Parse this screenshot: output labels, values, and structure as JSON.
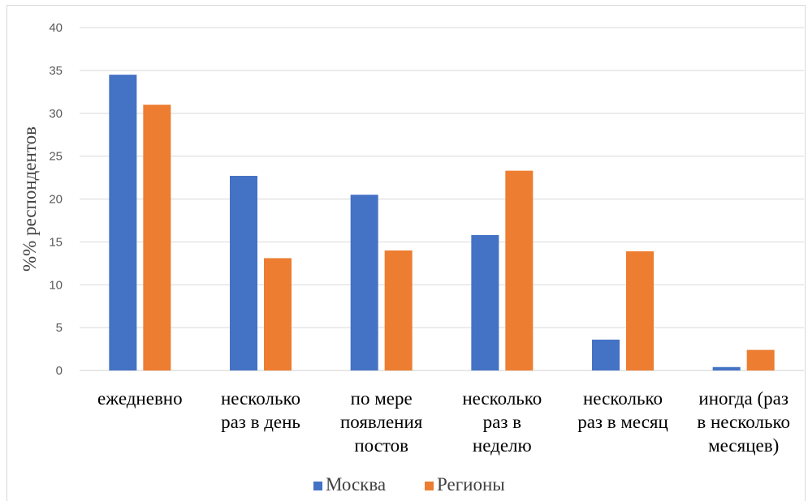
{
  "chart_data": {
    "type": "bar",
    "title": "",
    "xlabel": "",
    "ylabel": "%% респондентов",
    "ylim": [
      0,
      40
    ],
    "yticks": [
      0,
      5,
      10,
      15,
      20,
      25,
      30,
      35,
      40
    ],
    "grid": true,
    "legend_position": "bottom",
    "categories": [
      [
        "ежедневно"
      ],
      [
        "несколько",
        "раз в день"
      ],
      [
        "по мере",
        "появления",
        "постов"
      ],
      [
        "несколько",
        "раз в",
        "неделю"
      ],
      [
        "несколько",
        "раз в месяц"
      ],
      [
        "иногда (раз",
        "в несколько",
        "месяцев)"
      ]
    ],
    "series": [
      {
        "name": "Москва",
        "color": "#4472C4",
        "values": [
          34.5,
          22.7,
          20.5,
          15.8,
          3.6,
          0.4
        ]
      },
      {
        "name": "Регионы",
        "color": "#ED7D31",
        "values": [
          31.0,
          13.1,
          14.0,
          23.3,
          13.9,
          2.4
        ]
      }
    ]
  }
}
